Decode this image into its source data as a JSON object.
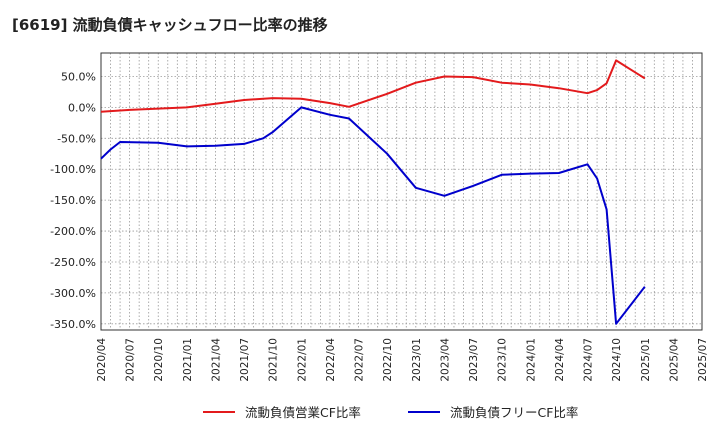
{
  "chart_data": {
    "type": "line",
    "title": "[6619]  流動負債キャッシュフロー比率の推移",
    "xlabel": "",
    "ylabel": "",
    "x_ticks": [
      "2020/04",
      "2020/07",
      "2020/10",
      "2021/01",
      "2021/04",
      "2021/07",
      "2021/10",
      "2022/01",
      "2022/04",
      "2022/07",
      "2022/10",
      "2023/01",
      "2023/04",
      "2023/07",
      "2023/10",
      "2024/01",
      "2024/04",
      "2024/07",
      "2024/10",
      "2025/01",
      "2025/04",
      "2025/07"
    ],
    "y_ticks": [
      50,
      0,
      -50,
      -100,
      -150,
      -200,
      -250,
      -300,
      -350
    ],
    "y_tick_labels": [
      "50.0%",
      "0.0%",
      "-50.0%",
      "-100.0%",
      "-150.0%",
      "-200.0%",
      "-250.0%",
      "-300.0%",
      "-350.0%"
    ],
    "ylim": [
      -360,
      88
    ],
    "xlim": [
      "2020/04",
      "2025/07"
    ],
    "grid": true,
    "legend_position": "bottom",
    "series": [
      {
        "name": "流動負債営業CF比率",
        "color": "#e31a1c",
        "points": [
          [
            "2020/04",
            -7
          ],
          [
            "2020/07",
            -4
          ],
          [
            "2020/10",
            -2
          ],
          [
            "2021/01",
            0
          ],
          [
            "2021/04",
            6
          ],
          [
            "2021/07",
            12
          ],
          [
            "2021/10",
            15
          ],
          [
            "2022/01",
            14
          ],
          [
            "2022/04",
            7
          ],
          [
            "2022/06",
            1
          ],
          [
            "2022/10",
            22
          ],
          [
            "2023/01",
            40
          ],
          [
            "2023/04",
            50
          ],
          [
            "2023/07",
            49
          ],
          [
            "2023/10",
            40
          ],
          [
            "2024/01",
            37
          ],
          [
            "2024/04",
            31
          ],
          [
            "2024/07",
            23
          ],
          [
            "2024/08",
            28
          ],
          [
            "2024/09",
            39
          ],
          [
            "2024/10",
            76
          ],
          [
            "2025/01",
            47
          ]
        ]
      },
      {
        "name": "流動負債フリーCF比率",
        "color": "#0000cc",
        "points": [
          [
            "2020/04",
            -83
          ],
          [
            "2020/05",
            -68
          ],
          [
            "2020/06",
            -56
          ],
          [
            "2020/10",
            -57
          ],
          [
            "2021/01",
            -63
          ],
          [
            "2021/04",
            -62
          ],
          [
            "2021/07",
            -59
          ],
          [
            "2021/09",
            -50
          ],
          [
            "2021/10",
            -40
          ],
          [
            "2022/01",
            0
          ],
          [
            "2022/04",
            -12
          ],
          [
            "2022/06",
            -18
          ],
          [
            "2022/10",
            -75
          ],
          [
            "2023/01",
            -130
          ],
          [
            "2023/04",
            -143
          ],
          [
            "2023/07",
            -127
          ],
          [
            "2023/10",
            -109
          ],
          [
            "2024/01",
            -107
          ],
          [
            "2024/04",
            -106
          ],
          [
            "2024/07",
            -92
          ],
          [
            "2024/08",
            -115
          ],
          [
            "2024/09",
            -165
          ],
          [
            "2024/10",
            -350
          ],
          [
            "2025/01",
            -290
          ]
        ]
      }
    ]
  }
}
